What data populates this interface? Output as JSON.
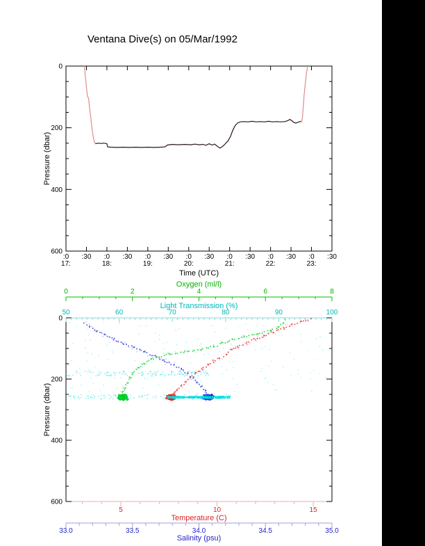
{
  "page": {
    "title": "Ventana Dive(s) on 05/Mar/1992",
    "background": "#ffffff",
    "right_strip_color": "#000000"
  },
  "chart_data": [
    {
      "id": "dive-pressure-timeseries",
      "type": "line",
      "title": "Ventana Dive(s) on 05/Mar/1992",
      "xlabel": "Time (UTC)",
      "ylabel": "Pressure (dbar)",
      "grid": false,
      "x_axis": {
        "min": 17.0,
        "max": 23.5,
        "ticks": [
          {
            "v": 17.0,
            "label": ":0",
            "hour": "17:"
          },
          {
            "v": 17.5,
            "label": ":30"
          },
          {
            "v": 18.0,
            "label": ":0",
            "hour": "18:"
          },
          {
            "v": 18.5,
            "label": ":30"
          },
          {
            "v": 19.0,
            "label": ":0",
            "hour": "19:"
          },
          {
            "v": 19.5,
            "label": ":30"
          },
          {
            "v": 20.0,
            "label": ":0",
            "hour": "20:"
          },
          {
            "v": 20.5,
            "label": ":30"
          },
          {
            "v": 21.0,
            "label": ":0",
            "hour": "21:"
          },
          {
            "v": 21.5,
            "label": ":30"
          },
          {
            "v": 22.0,
            "label": ":0",
            "hour": "22:"
          },
          {
            "v": 22.5,
            "label": ":30"
          },
          {
            "v": 23.0,
            "label": ":0",
            "hour": "23:"
          },
          {
            "v": 23.5,
            "label": ":30"
          }
        ]
      },
      "y_axis": {
        "min": 0,
        "max": 600,
        "direction": "down",
        "major_ticks": [
          {
            "v": 0,
            "label": "0"
          },
          {
            "v": 200,
            "label": "200"
          },
          {
            "v": 400,
            "label": "400"
          },
          {
            "v": 600,
            "label": "600"
          }
        ],
        "minor_step": 50
      },
      "series": [
        {
          "name": "descent",
          "color": "#dd8c8c",
          "points": [
            [
              17.45,
              0
            ],
            [
              17.46,
              15
            ],
            [
              17.48,
              42
            ],
            [
              17.5,
              70
            ],
            [
              17.52,
              92
            ],
            [
              17.53,
              100
            ],
            [
              17.55,
              103
            ],
            [
              17.57,
              128
            ],
            [
              17.6,
              160
            ],
            [
              17.63,
              195
            ],
            [
              17.66,
              225
            ],
            [
              17.69,
              245
            ],
            [
              17.72,
              252
            ]
          ]
        },
        {
          "name": "bottom-time",
          "color": "#2b1515",
          "points": [
            [
              17.72,
              252
            ],
            [
              17.78,
              250
            ],
            [
              17.85,
              251
            ],
            [
              17.92,
              250
            ],
            [
              17.98,
              251
            ],
            [
              18.0,
              252
            ],
            [
              18.02,
              262
            ],
            [
              18.1,
              263
            ],
            [
              18.25,
              264
            ],
            [
              18.4,
              263
            ],
            [
              18.55,
              264
            ],
            [
              18.7,
              263
            ],
            [
              18.85,
              264
            ],
            [
              19.0,
              263
            ],
            [
              19.15,
              264
            ],
            [
              19.3,
              263
            ],
            [
              19.42,
              262
            ],
            [
              19.48,
              256
            ],
            [
              19.6,
              254
            ],
            [
              19.75,
              255
            ],
            [
              19.9,
              254
            ],
            [
              20.05,
              255
            ],
            [
              20.15,
              253
            ],
            [
              20.25,
              255
            ],
            [
              20.35,
              254
            ],
            [
              20.42,
              257
            ],
            [
              20.5,
              252
            ],
            [
              20.57,
              256
            ],
            [
              20.63,
              253
            ],
            [
              20.68,
              258
            ],
            [
              20.72,
              262
            ],
            [
              20.76,
              266
            ],
            [
              20.8,
              263
            ],
            [
              20.84,
              259
            ],
            [
              20.88,
              254
            ],
            [
              20.92,
              248
            ],
            [
              20.96,
              243
            ],
            [
              21.02,
              228
            ],
            [
              21.08,
              207
            ],
            [
              21.14,
              192
            ],
            [
              21.2,
              184
            ],
            [
              21.26,
              181
            ],
            [
              21.35,
              180
            ],
            [
              21.45,
              181
            ],
            [
              21.55,
              179
            ],
            [
              21.65,
              181
            ],
            [
              21.75,
              180
            ],
            [
              21.85,
              181
            ],
            [
              21.95,
              179
            ],
            [
              22.05,
              181
            ],
            [
              22.15,
              180
            ],
            [
              22.25,
              181
            ],
            [
              22.35,
              180
            ],
            [
              22.42,
              177
            ],
            [
              22.47,
              173
            ],
            [
              22.52,
              177
            ],
            [
              22.57,
              183
            ],
            [
              22.62,
              185
            ],
            [
              22.67,
              182
            ],
            [
              22.72,
              180
            ],
            [
              22.76,
              180
            ]
          ]
        },
        {
          "name": "ascent",
          "color": "#dd8c8c",
          "points": [
            [
              22.76,
              180
            ],
            [
              22.78,
              165
            ],
            [
              22.8,
              130
            ],
            [
              22.82,
              95
            ],
            [
              22.85,
              55
            ],
            [
              22.88,
              20
            ],
            [
              22.9,
              5
            ],
            [
              22.91,
              0
            ]
          ]
        }
      ]
    },
    {
      "id": "ctd-profiles",
      "type": "scatter",
      "ylabel": "Pressure (dbar)",
      "y_axis": {
        "min": 0,
        "max": 600,
        "direction": "down",
        "major_ticks": [
          {
            "v": 0,
            "label": "0"
          },
          {
            "v": 200,
            "label": "200"
          },
          {
            "v": 400,
            "label": "400"
          },
          {
            "v": 600,
            "label": "600"
          }
        ],
        "minor_step": 50
      },
      "x_axes": [
        {
          "id": "oxygen",
          "label": "Oxygen (ml/l)",
          "min": 0,
          "max": 8,
          "minor_step": 0.5,
          "label_color": "#00b300",
          "line_color": "#00bb00",
          "ticks": [
            {
              "v": 0,
              "label": "0"
            },
            {
              "v": 2,
              "label": "2"
            },
            {
              "v": 4,
              "label": "4"
            },
            {
              "v": 6,
              "label": "6"
            },
            {
              "v": 8,
              "label": "8"
            }
          ]
        },
        {
          "id": "light",
          "label": "Light Transmission (%)",
          "min": 50,
          "max": 100,
          "minor_step": 1,
          "label_color": "#00b7b7",
          "line_color": "#7fdede",
          "ticks": [
            {
              "v": 50,
              "label": "50"
            },
            {
              "v": 60,
              "label": "60"
            },
            {
              "v": 70,
              "label": "70"
            },
            {
              "v": 80,
              "label": "80"
            },
            {
              "v": 90,
              "label": "90"
            },
            {
              "v": 100,
              "label": "100"
            }
          ]
        },
        {
          "id": "temperature",
          "label": "Temperature (C)",
          "min": 2.15,
          "max": 15.97,
          "minor_step": 1,
          "label_color": "#dd2222",
          "line_color": "#f2aaaa",
          "ticks": [
            {
              "v": 5,
              "label": "5"
            },
            {
              "v": 10,
              "label": "10"
            },
            {
              "v": 15,
              "label": "15"
            }
          ]
        },
        {
          "id": "salinity",
          "label": "Salinity (psu)",
          "min": 33.0,
          "max": 35.0,
          "minor_step": 0.1,
          "label_color": "#2222cc",
          "line_color": "#9f9fdf",
          "ticks": [
            {
              "v": 33.0,
              "label": "33.0"
            },
            {
              "v": 33.5,
              "label": "33.5"
            },
            {
              "v": 34.0,
              "label": "34.0"
            },
            {
              "v": 34.5,
              "label": "34.5"
            },
            {
              "v": 35.0,
              "label": "35.0"
            }
          ]
        }
      ],
      "series": [
        {
          "name": "oxygen-profile",
          "axis": "oxygen",
          "color": "#00cc22",
          "points": [
            [
              6.6,
              8
            ],
            [
              6.55,
              18
            ],
            [
              6.4,
              30
            ],
            [
              6.15,
              42
            ],
            [
              5.75,
              52
            ],
            [
              5.35,
              62
            ],
            [
              5.0,
              72
            ],
            [
              4.7,
              83
            ],
            [
              4.45,
              94
            ],
            [
              4.05,
              103
            ],
            [
              3.55,
              111
            ],
            [
              3.1,
              119
            ],
            [
              2.8,
              127
            ],
            [
              2.55,
              136
            ],
            [
              2.35,
              149
            ],
            [
              2.18,
              163
            ],
            [
              2.04,
              178
            ],
            [
              1.93,
              195
            ],
            [
              1.84,
              212
            ],
            [
              1.77,
              228
            ],
            [
              1.71,
              242
            ],
            [
              1.68,
              252
            ]
          ],
          "cluster": {
            "center": [
              1.7,
              259
            ],
            "spread": [
              0.18,
              11
            ],
            "n": 170
          }
        },
        {
          "name": "temperature-profile",
          "axis": "temperature",
          "color": "#ee2222",
          "points": [
            [
              14.85,
              4
            ],
            [
              14.35,
              12
            ],
            [
              13.9,
              22
            ],
            [
              13.45,
              34
            ],
            [
              12.95,
              46
            ],
            [
              12.45,
              58
            ],
            [
              11.95,
              70
            ],
            [
              11.5,
              82
            ],
            [
              11.05,
              95
            ],
            [
              10.72,
              106
            ],
            [
              10.45,
              118
            ],
            [
              10.15,
              130
            ],
            [
              9.82,
              142
            ],
            [
              9.52,
              154
            ],
            [
              9.22,
              167
            ],
            [
              8.92,
              180
            ],
            [
              8.62,
              194
            ],
            [
              8.36,
              208
            ],
            [
              8.12,
              222
            ],
            [
              7.92,
              235
            ],
            [
              7.76,
              246
            ],
            [
              7.66,
              253
            ]
          ],
          "cluster": {
            "center": [
              7.62,
              260
            ],
            "spread": [
              0.3,
              11
            ],
            "n": 170
          }
        },
        {
          "name": "salinity-profile",
          "axis": "salinity",
          "color": "#2233dd",
          "points": [
            [
              33.14,
              16
            ],
            [
              33.18,
              28
            ],
            [
              33.23,
              42
            ],
            [
              33.29,
              56
            ],
            [
              33.36,
              70
            ],
            [
              33.43,
              84
            ],
            [
              33.51,
              98
            ],
            [
              33.59,
              112
            ],
            [
              33.67,
              126
            ],
            [
              33.74,
              140
            ],
            [
              33.81,
              154
            ],
            [
              33.865,
              168
            ],
            [
              33.915,
              182
            ],
            [
              33.955,
              196
            ],
            [
              33.99,
              210
            ],
            [
              34.02,
              224
            ],
            [
              34.045,
              238
            ],
            [
              34.06,
              250
            ]
          ],
          "cluster": {
            "center": [
              34.07,
              259
            ],
            "spread": [
              0.055,
              11
            ],
            "n": 170
          }
        },
        {
          "name": "light-transmission-scatter",
          "axis": "light",
          "color": "#00dde0",
          "bands": [
            {
              "v": [
                50,
                77
              ],
              "p": [
                174,
                190
              ],
              "n": 120,
              "opacity": 0.55
            },
            {
              "v": [
                50,
                81
              ],
              "p": [
                250,
                266
              ],
              "n": 100,
              "opacity": 0.55
            },
            {
              "v": [
                69,
                81
              ],
              "p": [
                256,
                263
              ],
              "n": 380,
              "opacity": 0.95
            },
            {
              "v": [
                50,
                100
              ],
              "p": [
                2,
                250
              ],
              "n": 140,
              "opacity": 0.35
            }
          ]
        }
      ]
    }
  ]
}
